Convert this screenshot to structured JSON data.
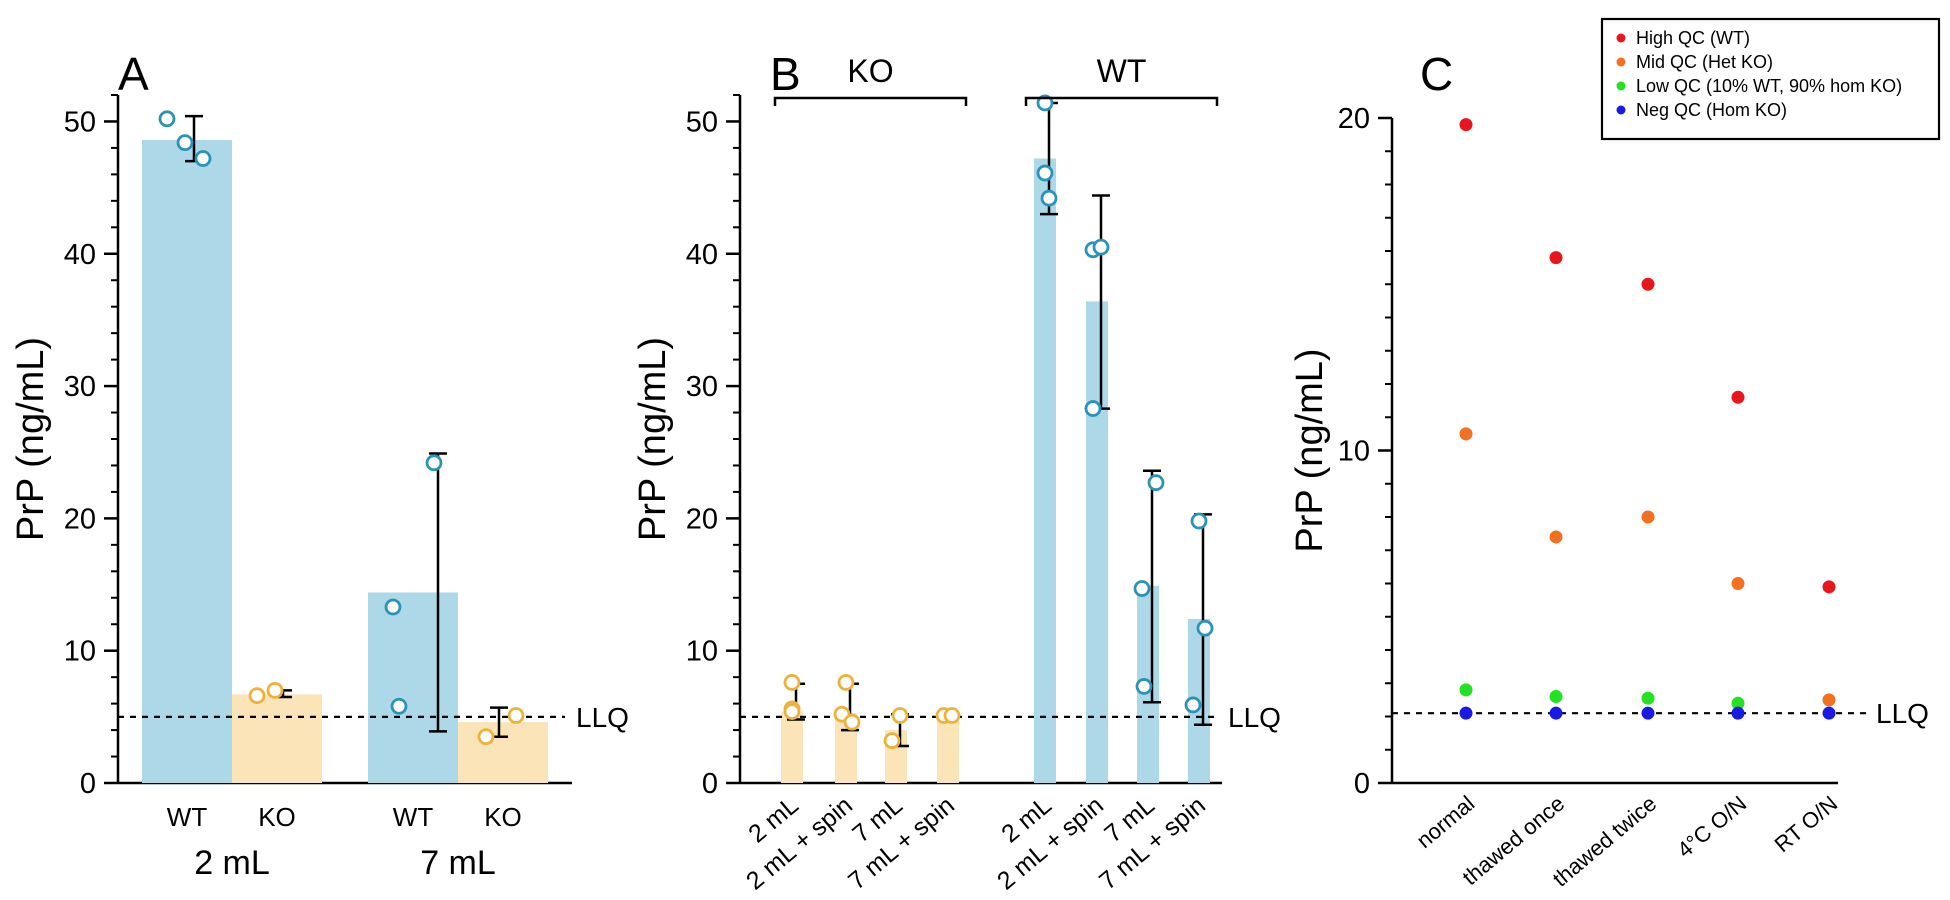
{
  "figure": {
    "panel_labels": [
      "A",
      "B",
      "C"
    ],
    "llq_label": "LLQ"
  },
  "chart_data": [
    {
      "panel": "A",
      "type": "bar",
      "ylabel": "PrP (ng/mL)",
      "ylim": [
        0,
        52
      ],
      "yticks": [
        0,
        10,
        20,
        30,
        40,
        50
      ],
      "llq": 5,
      "groups": [
        {
          "label": "2 mL",
          "bars": [
            {
              "label": "WT",
              "genotype": "WT",
              "value": 48.6,
              "err": [
                47.0,
                50.4
              ],
              "points": [
                50.2,
                48.4,
                47.2
              ]
            },
            {
              "label": "KO",
              "genotype": "KO",
              "value": 6.7,
              "err": [
                6.5,
                7.0
              ],
              "points": [
                6.6,
                7.0
              ]
            }
          ]
        },
        {
          "label": "7 mL",
          "bars": [
            {
              "label": "WT",
              "genotype": "WT",
              "value": 14.4,
              "err": [
                3.9,
                24.9
              ],
              "points": [
                13.3,
                5.8,
                24.2
              ]
            },
            {
              "label": "KO",
              "genotype": "KO",
              "value": 4.6,
              "err": [
                3.5,
                5.7
              ],
              "points": [
                3.5,
                5.1
              ]
            }
          ]
        }
      ]
    },
    {
      "panel": "B",
      "type": "bar",
      "ylabel": "PrP (ng/mL)",
      "ylim": [
        0,
        52
      ],
      "yticks": [
        0,
        10,
        20,
        30,
        40,
        50
      ],
      "llq": 5,
      "groups": [
        {
          "label": "KO",
          "bars": [
            {
              "label": "2 mL",
              "genotype": "KO",
              "value": 5.4,
              "err": [
                4.8,
                7.5
              ],
              "points": [
                7.6,
                5.6,
                5.4
              ]
            },
            {
              "label": "2 mL + spin",
              "genotype": "KO",
              "value": 5.3,
              "err": [
                4.0,
                7.5
              ],
              "points": [
                7.6,
                5.2,
                4.6
              ]
            },
            {
              "label": "7 mL",
              "genotype": "KO",
              "value": 4.0,
              "err": [
                2.8,
                5.2
              ],
              "points": [
                5.1,
                3.2
              ]
            },
            {
              "label": "7 mL + spin",
              "genotype": "KO",
              "value": 5.1,
              "err": null,
              "points": [
                5.1,
                5.1
              ]
            }
          ]
        },
        {
          "label": "WT",
          "bars": [
            {
              "label": "2 mL",
              "genotype": "WT",
              "value": 47.2,
              "err": [
                43.0,
                51.4
              ],
              "points": [
                51.4,
                46.1,
                44.2
              ]
            },
            {
              "label": "2 mL + spin",
              "genotype": "WT",
              "value": 36.4,
              "err": [
                28.3,
                44.4
              ],
              "points": [
                40.3,
                40.5,
                28.3
              ]
            },
            {
              "label": "7 mL",
              "genotype": "WT",
              "value": 14.9,
              "err": [
                6.1,
                23.6
              ],
              "points": [
                14.7,
                7.3,
                22.7
              ]
            },
            {
              "label": "7 mL + spin",
              "genotype": "WT",
              "value": 12.4,
              "err": [
                4.4,
                20.3
              ],
              "points": [
                5.9,
                11.7,
                19.8
              ]
            }
          ]
        }
      ]
    },
    {
      "panel": "C",
      "type": "scatter",
      "ylabel": "PrP (ng/mL)",
      "ylim": [
        0,
        20
      ],
      "yticks": [
        0,
        10,
        20
      ],
      "llq": 2.1,
      "categories": [
        "normal",
        "thawed once",
        "thawed twice",
        "4°C O/N",
        "RT O/N"
      ],
      "legend_position": "top-right",
      "series": [
        {
          "name": "High QC (WT)",
          "color": "#e8161c",
          "values": [
            19.8,
            15.8,
            15.0,
            11.6,
            5.9
          ]
        },
        {
          "name": "Mid QC (Het KO)",
          "color": "#f37021",
          "values": [
            10.5,
            7.4,
            8.0,
            6.0,
            2.5
          ]
        },
        {
          "name": "Low QC (10% WT, 90% hom KO)",
          "color": "#22e322",
          "values": [
            2.8,
            2.6,
            2.55,
            2.4,
            null
          ]
        },
        {
          "name": "Neg QC (Hom KO)",
          "color": "#1a1ae6",
          "values": [
            2.1,
            2.1,
            2.1,
            2.1,
            2.1
          ]
        }
      ]
    }
  ],
  "colors": {
    "wt_bar": "#acd8e8",
    "ko_bar": "#fbe4b8",
    "wt_point": "#2b93b8",
    "ko_point": "#eeb23a",
    "axis": "#000000"
  }
}
